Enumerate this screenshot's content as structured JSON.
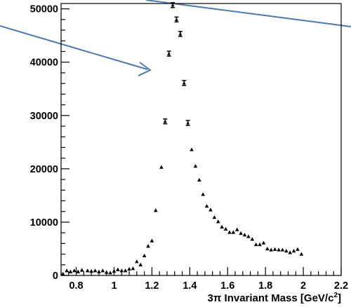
{
  "chart_data": {
    "type": "scatter",
    "xlabel_prefix": "3",
    "xlabel_pi": "π",
    "xlabel_main": " Invariant Mass [GeV/c",
    "xlabel_sup": "2",
    "xlabel_close": "]",
    "ylabel": "",
    "xlim": [
      0.72,
      2.2
    ],
    "ylim": [
      0,
      51000
    ],
    "x_ticks": [
      0.8,
      1.0,
      1.2,
      1.4,
      1.6,
      1.8,
      2.0,
      2.2
    ],
    "x_tick_labels": [
      "0.8",
      "1",
      "1.2",
      "1.4",
      "1.6",
      "1.8",
      "2",
      "2.2"
    ],
    "y_ticks": [
      0,
      10000,
      20000,
      30000,
      40000,
      50000
    ],
    "y_tick_labels": [
      "0",
      "10000",
      "20000",
      "30000",
      "40000",
      "50000"
    ],
    "grid": false,
    "series": [
      {
        "marker": "triangle",
        "color": "#000000",
        "x": [
          0.73,
          0.75,
          0.77,
          0.79,
          0.81,
          0.83,
          0.86,
          0.88,
          0.9,
          0.92,
          0.94,
          0.96,
          0.98,
          1.0,
          1.02,
          1.04,
          1.06,
          1.08,
          1.1,
          1.12,
          1.14,
          1.16,
          1.18,
          1.2,
          1.22
        ],
        "y": [
          300,
          900,
          700,
          900,
          700,
          1000,
          900,
          800,
          900,
          700,
          900,
          600,
          500,
          800,
          1100,
          900,
          900,
          1200,
          1300,
          2600,
          2000,
          3700,
          5500,
          6500,
          12200
        ]
      },
      {
        "marker": "errorbar",
        "color": "#000000",
        "x": [
          1.27,
          1.29,
          1.31,
          1.33,
          1.35,
          1.37,
          1.39
        ],
        "y": [
          28900,
          41600,
          50700,
          48000,
          45300,
          36100,
          28600
        ]
      },
      {
        "marker": "triangle",
        "color": "#000000",
        "x": [
          1.25,
          1.41,
          1.43,
          1.45,
          1.47,
          1.49,
          1.51,
          1.53,
          1.55,
          1.57,
          1.59,
          1.61,
          1.63,
          1.65,
          1.67,
          1.69,
          1.71,
          1.73,
          1.75,
          1.77,
          1.79,
          1.81,
          1.83,
          1.85,
          1.87,
          1.89,
          1.91,
          1.93,
          1.95,
          1.97,
          1.99
        ],
        "y": [
          20300,
          23600,
          20500,
          17900,
          15200,
          13000,
          12300,
          10900,
          10100,
          9100,
          8700,
          8100,
          8100,
          8600,
          7900,
          7600,
          7300,
          6800,
          5800,
          5800,
          6100,
          5000,
          4800,
          4900,
          4800,
          4800,
          4600,
          4300,
          4600,
          4900,
          4000
        ]
      }
    ],
    "annotations": {
      "arrow_color": "#4a79b0"
    }
  }
}
